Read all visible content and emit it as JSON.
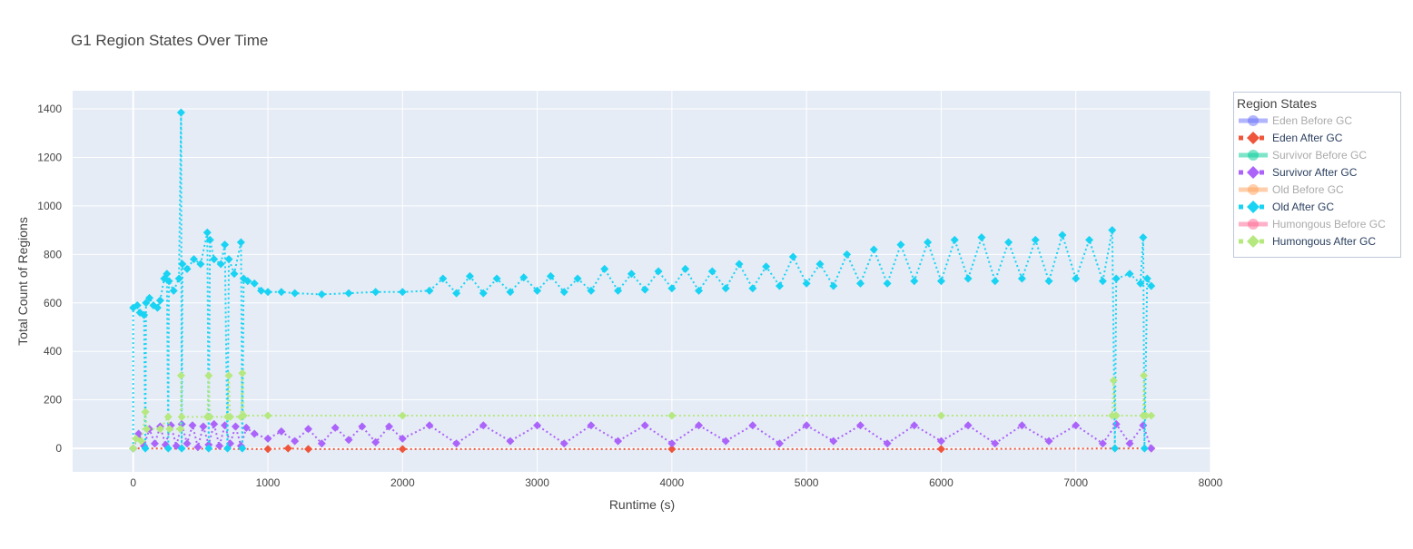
{
  "chart_data": {
    "type": "line",
    "title": "G1 Region States Over Time",
    "xlabel": "Runtime (s)",
    "ylabel": "Total Count of Regions",
    "xlim": [
      -450,
      8000
    ],
    "ylim": [
      -97,
      1475
    ],
    "xticks": [
      0,
      1000,
      2000,
      3000,
      4000,
      5000,
      6000,
      7000,
      8000
    ],
    "yticks": [
      0,
      200,
      400,
      600,
      800,
      1000,
      1200,
      1400
    ],
    "grid": true,
    "legend": {
      "title": "Region States",
      "placement": "right"
    },
    "series": [
      {
        "name": "Eden Before GC",
        "color": "#636efa",
        "visible": "legendonly",
        "x": [],
        "y": []
      },
      {
        "name": "Eden After GC",
        "color": "#EF553B",
        "visible": true,
        "x": [
          0,
          1000,
          1150,
          1300,
          2000,
          4000,
          6000,
          7560
        ],
        "y": [
          0,
          -3,
          0,
          -3,
          -3,
          -3,
          -3,
          0
        ]
      },
      {
        "name": "Survivor Before GC",
        "color": "#00cc96",
        "visible": "legendonly",
        "x": [],
        "y": []
      },
      {
        "name": "Survivor After GC",
        "color": "#ab63fa",
        "visible": true,
        "x": [
          0,
          40,
          80,
          120,
          160,
          200,
          240,
          280,
          320,
          360,
          400,
          440,
          480,
          520,
          560,
          600,
          640,
          680,
          720,
          760,
          800,
          840,
          900,
          1000,
          1100,
          1200,
          1300,
          1400,
          1500,
          1600,
          1700,
          1800,
          1900,
          2000,
          2200,
          2400,
          2600,
          2800,
          3000,
          3200,
          3400,
          3600,
          3800,
          4000,
          4200,
          4400,
          4600,
          4800,
          5000,
          5200,
          5400,
          5600,
          5800,
          6000,
          6200,
          6400,
          6600,
          6800,
          7000,
          7200,
          7300,
          7400,
          7500,
          7560
        ],
        "y": [
          0,
          60,
          10,
          80,
          20,
          90,
          15,
          95,
          10,
          100,
          20,
          95,
          5,
          90,
          15,
          100,
          10,
          95,
          20,
          90,
          10,
          85,
          60,
          40,
          70,
          30,
          80,
          20,
          85,
          35,
          90,
          25,
          90,
          40,
          95,
          20,
          95,
          30,
          95,
          20,
          95,
          30,
          95,
          20,
          95,
          30,
          95,
          20,
          95,
          30,
          95,
          20,
          95,
          30,
          95,
          20,
          95,
          30,
          95,
          20,
          100,
          20,
          95,
          0
        ]
      },
      {
        "name": "Old Before GC",
        "color": "#FFA15A",
        "visible": "legendonly",
        "x": [],
        "y": []
      },
      {
        "name": "Old After GC",
        "color": "#19d3f3",
        "visible": true,
        "x": [
          0,
          0,
          30,
          50,
          80,
          90,
          95,
          120,
          150,
          180,
          200,
          230,
          250,
          260,
          265,
          300,
          340,
          355,
          360,
          365,
          400,
          450,
          500,
          550,
          560,
          570,
          600,
          650,
          680,
          700,
          710,
          750,
          800,
          810,
          820,
          850,
          900,
          950,
          1000,
          1100,
          1200,
          1400,
          1600,
          1800,
          2000,
          2200,
          2300,
          2400,
          2500,
          2600,
          2700,
          2800,
          2900,
          3000,
          3100,
          3200,
          3300,
          3400,
          3500,
          3600,
          3700,
          3800,
          3900,
          4000,
          4100,
          4200,
          4300,
          4400,
          4500,
          4600,
          4700,
          4800,
          4900,
          5000,
          5100,
          5200,
          5300,
          5400,
          5500,
          5600,
          5700,
          5800,
          5900,
          6000,
          6100,
          6200,
          6300,
          6400,
          6500,
          6600,
          6700,
          6800,
          6900,
          7000,
          7100,
          7200,
          7270,
          7290,
          7300,
          7400,
          7480,
          7500,
          7510,
          7530,
          7560
        ],
        "y": [
          0,
          580,
          590,
          560,
          550,
          0,
          600,
          620,
          590,
          580,
          610,
          700,
          720,
          0,
          690,
          650,
          700,
          1385,
          0,
          760,
          740,
          780,
          760,
          890,
          0,
          860,
          780,
          760,
          840,
          0,
          780,
          720,
          850,
          0,
          700,
          690,
          680,
          650,
          645,
          645,
          640,
          635,
          640,
          645,
          645,
          650,
          700,
          640,
          710,
          640,
          700,
          645,
          705,
          650,
          710,
          645,
          700,
          650,
          740,
          650,
          720,
          655,
          730,
          660,
          740,
          650,
          730,
          660,
          760,
          660,
          750,
          670,
          790,
          680,
          760,
          670,
          800,
          680,
          820,
          680,
          840,
          690,
          850,
          690,
          860,
          700,
          870,
          690,
          850,
          700,
          860,
          690,
          880,
          700,
          860,
          690,
          900,
          0,
          700,
          720,
          680,
          870,
          0,
          700,
          670
        ]
      },
      {
        "name": "Humongous Before GC",
        "color": "#FF6692",
        "visible": "legendonly",
        "x": [],
        "y": []
      },
      {
        "name": "Humongous After GC",
        "color": "#B6E880",
        "visible": true,
        "x": [
          0,
          20,
          60,
          90,
          100,
          200,
          260,
          270,
          350,
          355,
          360,
          550,
          560,
          570,
          700,
          710,
          720,
          800,
          810,
          820,
          1000,
          2000,
          4000,
          6000,
          7270,
          7280,
          7300,
          7500,
          7505,
          7520,
          7560
        ],
        "y": [
          0,
          40,
          30,
          150,
          80,
          80,
          130,
          80,
          80,
          300,
          130,
          130,
          300,
          130,
          130,
          300,
          130,
          130,
          310,
          135,
          135,
          135,
          135,
          135,
          135,
          280,
          135,
          135,
          300,
          135,
          135
        ]
      }
    ]
  }
}
